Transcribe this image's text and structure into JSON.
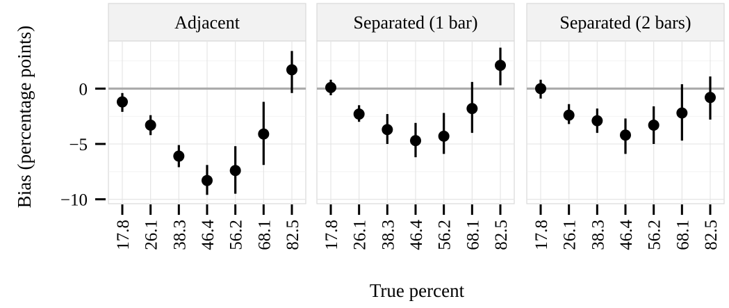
{
  "chart_data": {
    "type": "scatter",
    "style": "point-with-errorbars, faceted",
    "xlabel": "True percent",
    "ylabel": "Bias (percentage points)",
    "categories": [
      "17.8",
      "26.1",
      "38.3",
      "46.4",
      "56.2",
      "68.1",
      "82.5"
    ],
    "yticks": [
      0,
      -5,
      -10
    ],
    "ylim": [
      -10.4,
      4.3
    ],
    "reference_line": 0,
    "panels": [
      {
        "label": "Adjacent",
        "points": [
          {
            "x": "17.8",
            "y": -1.2,
            "lo": -2.1,
            "hi": -0.4
          },
          {
            "x": "26.1",
            "y": -3.3,
            "lo": -4.2,
            "hi": -2.4
          },
          {
            "x": "38.3",
            "y": -6.1,
            "lo": -7.1,
            "hi": -5.1
          },
          {
            "x": "46.4",
            "y": -8.3,
            "lo": -9.6,
            "hi": -6.9
          },
          {
            "x": "56.2",
            "y": -7.4,
            "lo": -9.5,
            "hi": -5.2
          },
          {
            "x": "68.1",
            "y": -4.1,
            "lo": -6.9,
            "hi": -1.2
          },
          {
            "x": "82.5",
            "y": 1.7,
            "lo": -0.4,
            "hi": 3.4
          }
        ]
      },
      {
        "label": "Separated (1 bar)",
        "points": [
          {
            "x": "17.8",
            "y": 0.1,
            "lo": -0.6,
            "hi": 0.8
          },
          {
            "x": "26.1",
            "y": -2.3,
            "lo": -3.0,
            "hi": -1.5
          },
          {
            "x": "38.3",
            "y": -3.7,
            "lo": -5.0,
            "hi": -2.3
          },
          {
            "x": "46.4",
            "y": -4.7,
            "lo": -6.2,
            "hi": -3.1
          },
          {
            "x": "56.2",
            "y": -4.3,
            "lo": -5.9,
            "hi": -2.2
          },
          {
            "x": "68.1",
            "y": -1.8,
            "lo": -4.0,
            "hi": 0.6
          },
          {
            "x": "82.5",
            "y": 2.1,
            "lo": 0.3,
            "hi": 3.7
          }
        ]
      },
      {
        "label": "Separated (2 bars)",
        "points": [
          {
            "x": "17.8",
            "y": 0.0,
            "lo": -0.9,
            "hi": 0.8
          },
          {
            "x": "26.1",
            "y": -2.4,
            "lo": -3.2,
            "hi": -1.4
          },
          {
            "x": "38.3",
            "y": -2.9,
            "lo": -4.0,
            "hi": -1.8
          },
          {
            "x": "46.4",
            "y": -4.2,
            "lo": -5.9,
            "hi": -2.7
          },
          {
            "x": "56.2",
            "y": -3.3,
            "lo": -5.0,
            "hi": -1.6
          },
          {
            "x": "68.1",
            "y": -2.2,
            "lo": -4.7,
            "hi": 0.4
          },
          {
            "x": "82.5",
            "y": -0.8,
            "lo": -2.8,
            "hi": 1.1
          }
        ]
      }
    ],
    "colors": {
      "point": "#000000",
      "reference_line": "#ababab",
      "strip_background": "#f2f2f2",
      "panel_border": "#d9d9d9",
      "gridline": "#e5e5e5"
    },
    "grid": true,
    "legend": "none"
  }
}
